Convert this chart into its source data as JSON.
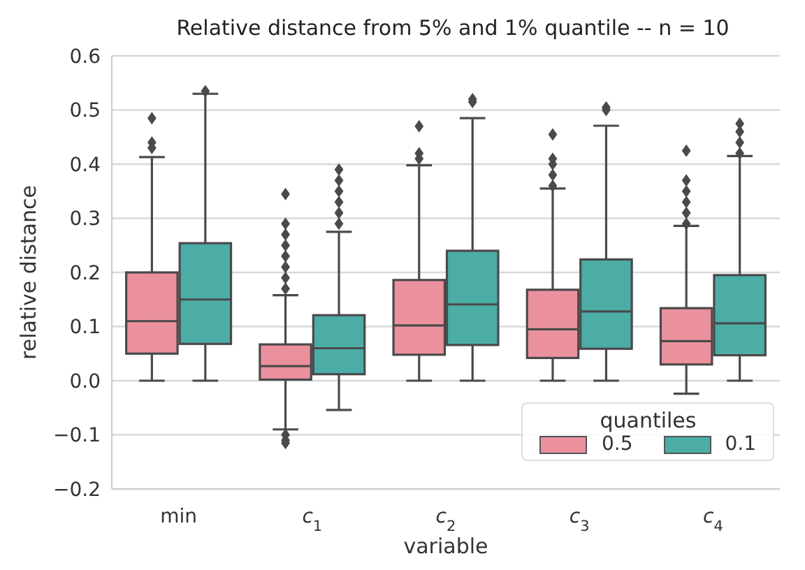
{
  "chart_data": {
    "type": "box",
    "title": "Relative distance from 5% and 1% quantile -- n = 10",
    "xlabel": "variable",
    "ylabel": "relative distance",
    "legend_title": "quantiles",
    "legend": "bottom right",
    "grid": "y",
    "categories": [
      "min",
      "c$_{1}$",
      "c$_{2}$",
      "c$_{3}$",
      "c$_{4}$"
    ],
    "ylim": [
      -0.2,
      0.6
    ],
    "yticks": [
      {
        "value": -0.2,
        "label": "−0.2"
      },
      {
        "value": -0.1,
        "label": "−0.1"
      },
      {
        "value": 0,
        "label": "0.0"
      },
      {
        "value": 0.1,
        "label": "0.1"
      },
      {
        "value": 0.2,
        "label": "0.2"
      },
      {
        "value": 0.3,
        "label": "0.3"
      },
      {
        "value": 0.4,
        "label": "0.4"
      },
      {
        "value": 0.5,
        "label": "0.5"
      },
      {
        "value": 0.6,
        "label": "0.6"
      }
    ],
    "series": [
      {
        "name": "0.5",
        "color": "#eb919e",
        "boxes": [
          {
            "low": 0,
            "q1": 0.05,
            "median": 0.11,
            "q3": 0.2,
            "high": 0.413,
            "outliers": [
              0.43,
              0.44,
              0.485
            ]
          },
          {
            "low": -0.09,
            "q1": 0.002,
            "median": 0.027,
            "q3": 0.067,
            "high": 0.158,
            "outliers": [
              0.17,
              0.19,
              0.21,
              0.23,
              0.25,
              0.27,
              0.29,
              0.345,
              -0.1,
              -0.11,
              -0.115
            ]
          },
          {
            "low": 0,
            "q1": 0.048,
            "median": 0.102,
            "q3": 0.186,
            "high": 0.398,
            "outliers": [
              0.41,
              0.42,
              0.47
            ]
          },
          {
            "low": 0,
            "q1": 0.042,
            "median": 0.095,
            "q3": 0.168,
            "high": 0.355,
            "outliers": [
              0.36,
              0.38,
              0.4,
              0.41,
              0.455
            ]
          },
          {
            "low": -0.024,
            "q1": 0.03,
            "median": 0.073,
            "q3": 0.134,
            "high": 0.286,
            "outliers": [
              0.29,
              0.31,
              0.33,
              0.35,
              0.37,
              0.425
            ]
          }
        ]
      },
      {
        "name": "0.1",
        "color": "#4bada6",
        "boxes": [
          {
            "low": 0,
            "q1": 0.068,
            "median": 0.15,
            "q3": 0.254,
            "high": 0.53,
            "outliers": [
              0.535
            ]
          },
          {
            "low": -0.054,
            "q1": 0.012,
            "median": 0.06,
            "q3": 0.121,
            "high": 0.275,
            "outliers": [
              0.29,
              0.31,
              0.33,
              0.35,
              0.37,
              0.39
            ]
          },
          {
            "low": 0,
            "q1": 0.066,
            "median": 0.141,
            "q3": 0.24,
            "high": 0.485,
            "outliers": [
              0.515,
              0.52
            ]
          },
          {
            "low": 0,
            "q1": 0.059,
            "median": 0.128,
            "q3": 0.224,
            "high": 0.471,
            "outliers": [
              0.5,
              0.505
            ]
          },
          {
            "low": 0,
            "q1": 0.047,
            "median": 0.106,
            "q3": 0.195,
            "high": 0.415,
            "outliers": [
              0.42,
              0.44,
              0.46,
              0.475
            ]
          }
        ]
      }
    ]
  }
}
